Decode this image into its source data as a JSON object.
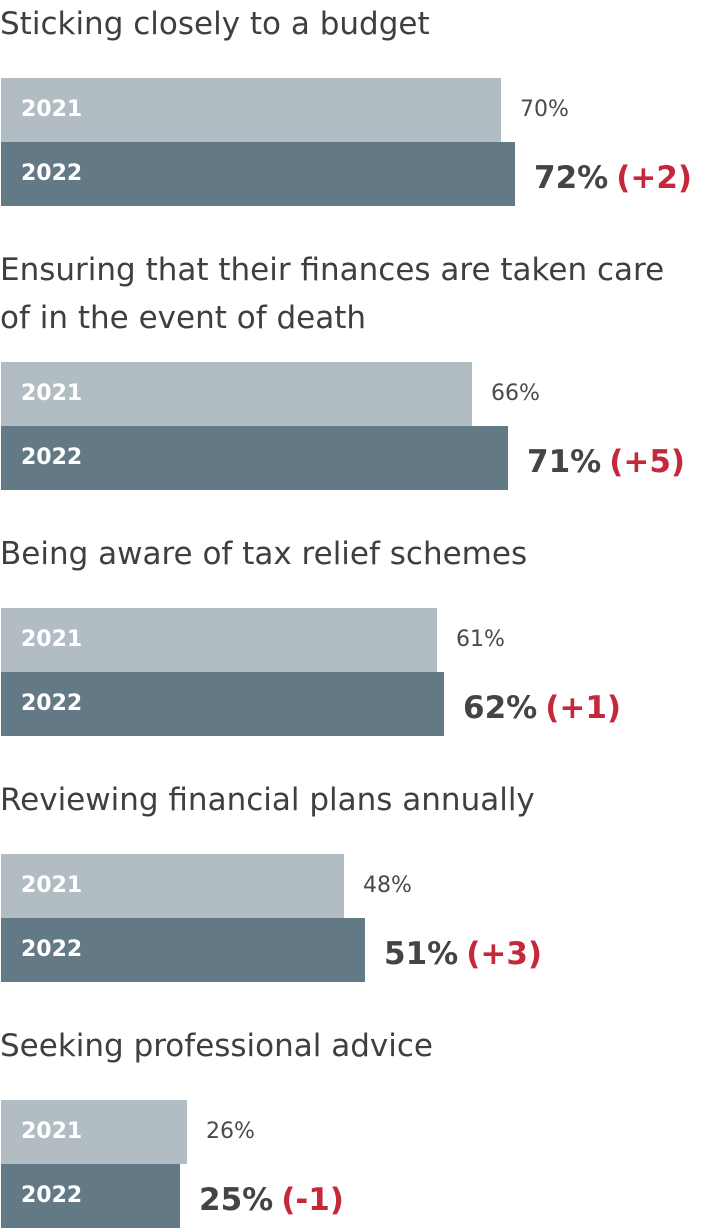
{
  "chart_data": {
    "type": "bar",
    "orientation": "horizontal",
    "series": [
      {
        "name": "2021",
        "color": "#b1bcc3",
        "values": [
          70,
          66,
          61,
          48,
          26
        ]
      },
      {
        "name": "2022",
        "color": "#647986",
        "values": [
          72,
          71,
          62,
          51,
          25
        ]
      }
    ],
    "categories": [
      "Sticking closely to a budget",
      "Ensuring that their finances are taken care of in the event of death",
      "Being aware of tax relief schemes",
      "Reviewing financial plans annually",
      "Seeking professional advice"
    ],
    "value_labels_2021": [
      "70%",
      "66%",
      "61%",
      "48%",
      "26%"
    ],
    "value_labels_2022": [
      "72%",
      "71%",
      "62%",
      "51%",
      "25%"
    ],
    "change_labels": [
      "(+2)",
      "(+5)",
      "(+1)",
      "(+3)",
      "(-1)"
    ],
    "change_color": "#c4283a",
    "xlim": [
      0,
      100
    ],
    "grid": false,
    "legend": "none"
  }
}
